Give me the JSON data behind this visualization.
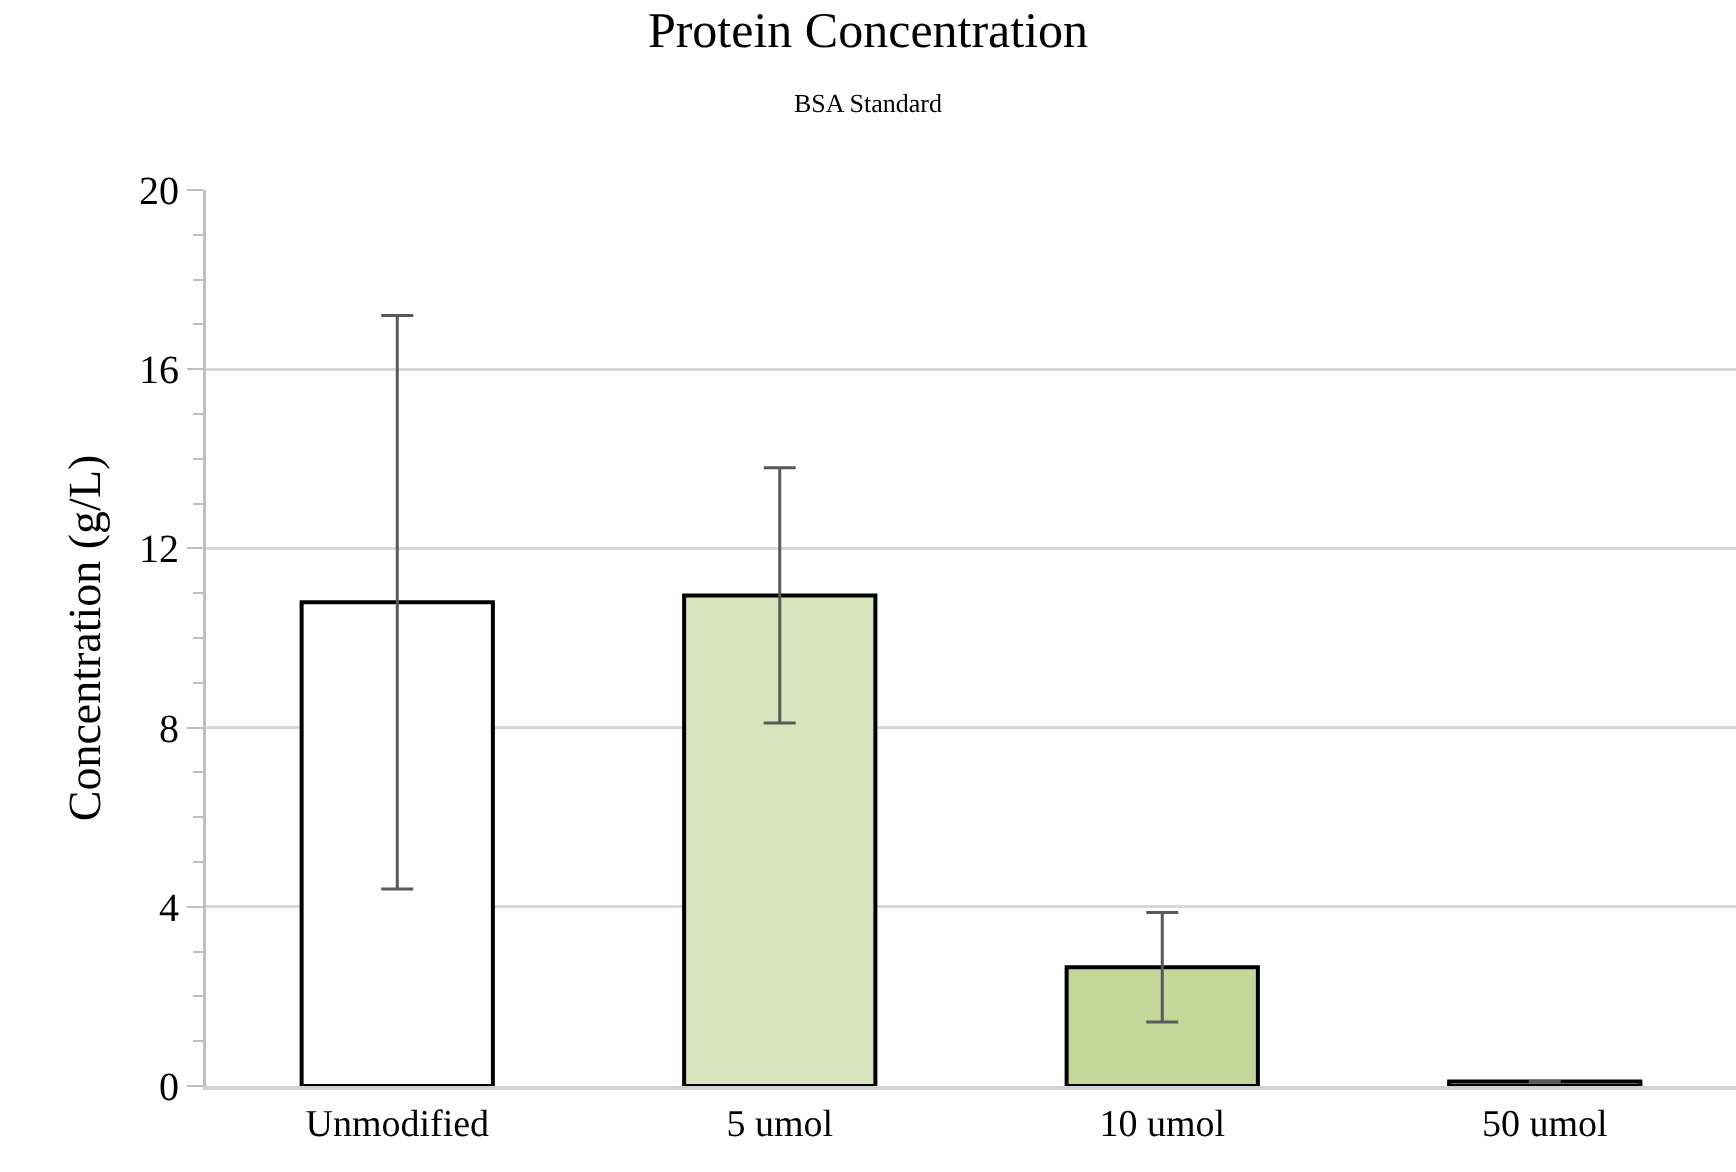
{
  "chart_data": {
    "type": "bar",
    "title": "Protein Concentration",
    "subtitle": "BSA Standard",
    "ylabel": "Concentration (g/L)",
    "categories": [
      "Unmodified",
      "5 umol",
      "10 umol",
      "50 umol"
    ],
    "values": [
      10.8,
      10.95,
      2.65,
      0.1
    ],
    "errors": [
      6.4,
      2.85,
      1.22,
      null
    ],
    "colors": [
      "#ffffff",
      "#d8e4bc",
      "#c4d79b",
      "#c4d79b"
    ],
    "ylim": [
      0,
      20
    ],
    "yticks": [
      0,
      4,
      8,
      12,
      16,
      20
    ],
    "grid": "y"
  }
}
